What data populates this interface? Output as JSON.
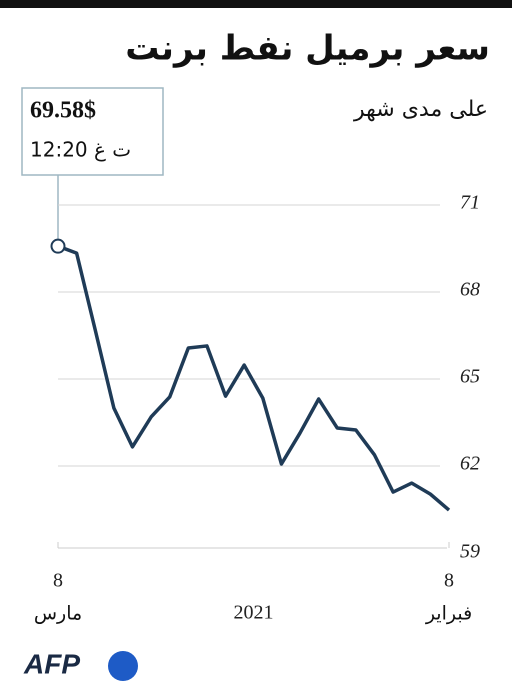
{
  "chart_data": {
    "type": "line",
    "title": "سعر برميل نفط برنت",
    "subtitle": "على مدى شهر",
    "categories": [
      "8",
      null,
      null,
      null,
      null,
      null,
      null,
      null,
      null,
      null,
      null,
      null,
      null,
      null,
      null,
      null,
      null,
      null,
      null,
      null,
      null,
      "8"
    ],
    "month_labels": [
      "فبراير",
      null,
      null,
      null,
      null,
      null,
      null,
      null,
      null,
      null,
      null,
      null,
      null,
      null,
      null,
      null,
      null,
      null,
      null,
      null,
      null,
      "مارس"
    ],
    "year_label": "2021",
    "x_direction": "rtl",
    "series": [
      {
        "color": "#1f3b57",
        "values": [
          60.48,
          61.03,
          61.41,
          61.1,
          62.38,
          63.24,
          63.31,
          64.31,
          63.14,
          62.07,
          64.34,
          65.48,
          64.41,
          66.14,
          66.07,
          64.38,
          63.69,
          62.66,
          64.0,
          66.69,
          69.34,
          69.58
        ],
        "value_labels": [
          null,
          null,
          null,
          null,
          null,
          null,
          null,
          null,
          null,
          null,
          null,
          null,
          null,
          null,
          null,
          null,
          null,
          null,
          null,
          null,
          null,
          "69.58$"
        ]
      }
    ],
    "annotation": "12:20 ت غ",
    "ylim": [
      59,
      71
    ],
    "yticks": [
      59,
      62,
      65,
      68,
      71
    ],
    "grid": true,
    "source": "AFP"
  }
}
